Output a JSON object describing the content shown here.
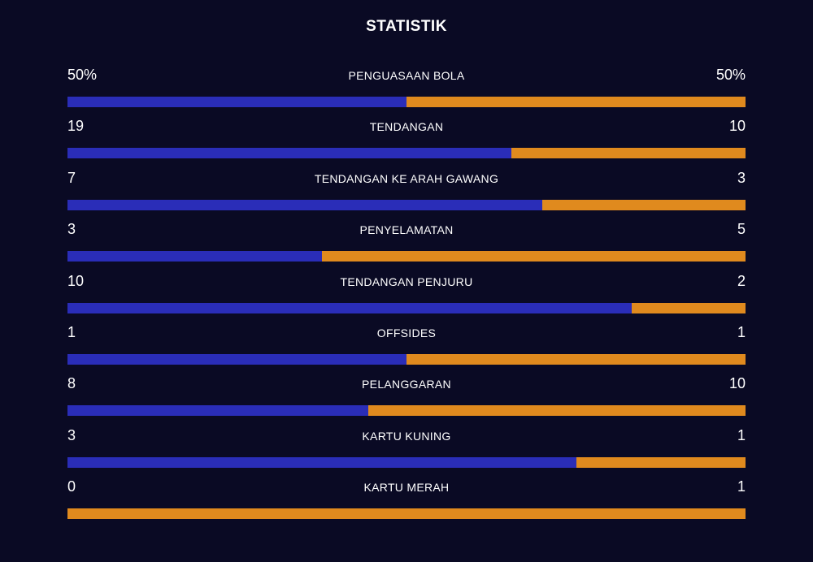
{
  "title": "STATISTIK",
  "colors": {
    "home": "#2a2db8",
    "away": "#e08a1e",
    "background": "#0a0a24"
  },
  "stats": [
    {
      "label": "PENGUASAAN BOLA",
      "home": "50%",
      "away": "50%",
      "home_share": 0.5
    },
    {
      "label": "TENDANGAN",
      "home": "19",
      "away": "10",
      "home_share": 0.655
    },
    {
      "label": "TENDANGAN KE ARAH GAWANG",
      "home": "7",
      "away": "3",
      "home_share": 0.7
    },
    {
      "label": "PENYELAMATAN",
      "home": "3",
      "away": "5",
      "home_share": 0.375
    },
    {
      "label": "TENDANGAN PENJURU",
      "home": "10",
      "away": "2",
      "home_share": 0.832
    },
    {
      "label": "OFFSIDES",
      "home": "1",
      "away": "1",
      "home_share": 0.5
    },
    {
      "label": "PELANGGARAN",
      "home": "8",
      "away": "10",
      "home_share": 0.444
    },
    {
      "label": "KARTU KUNING",
      "home": "3",
      "away": "1",
      "home_share": 0.75
    },
    {
      "label": "KARTU MERAH",
      "home": "0",
      "away": "1",
      "home_share": 0.0
    }
  ]
}
